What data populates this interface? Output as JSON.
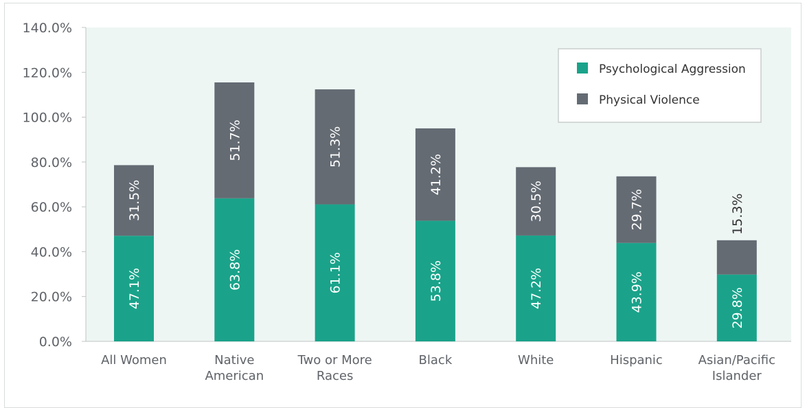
{
  "chart_data": {
    "type": "bar",
    "stacked": true,
    "categories": [
      [
        "All Women"
      ],
      [
        "Native",
        "American"
      ],
      [
        "Two or More",
        "Races"
      ],
      [
        "Black"
      ],
      [
        "White"
      ],
      [
        "Hispanic"
      ],
      [
        "Asian/Pacific",
        "Islander"
      ]
    ],
    "series": [
      {
        "name": "Psychological Aggression",
        "color": "#1aa38a",
        "values": [
          47.1,
          63.8,
          61.1,
          53.8,
          47.2,
          43.9,
          29.8
        ],
        "labels": [
          "47.1%",
          "63.8%",
          "61.1%",
          "53.8%",
          "47.2%",
          "43.9%",
          "29.8%"
        ]
      },
      {
        "name": "Physical Violence",
        "color": "#646b73",
        "values": [
          31.5,
          51.7,
          51.3,
          41.2,
          30.5,
          29.7,
          15.3
        ],
        "labels": [
          "31.5%",
          "51.7%",
          "51.3%",
          "41.2%",
          "30.5%",
          "29.7%",
          "15.3%"
        ]
      }
    ],
    "y_ticks": [
      "0.0%",
      "20.0%",
      "40.0%",
      "60.0%",
      "80.0%",
      "100.0%",
      "120.0%",
      "140.0%"
    ],
    "ylim": [
      0,
      140
    ],
    "y_tick_step": 20,
    "grid": false,
    "plot_background": "#eef6f4",
    "legend_position": "top-right",
    "title": "",
    "xlabel": "",
    "ylabel": ""
  }
}
